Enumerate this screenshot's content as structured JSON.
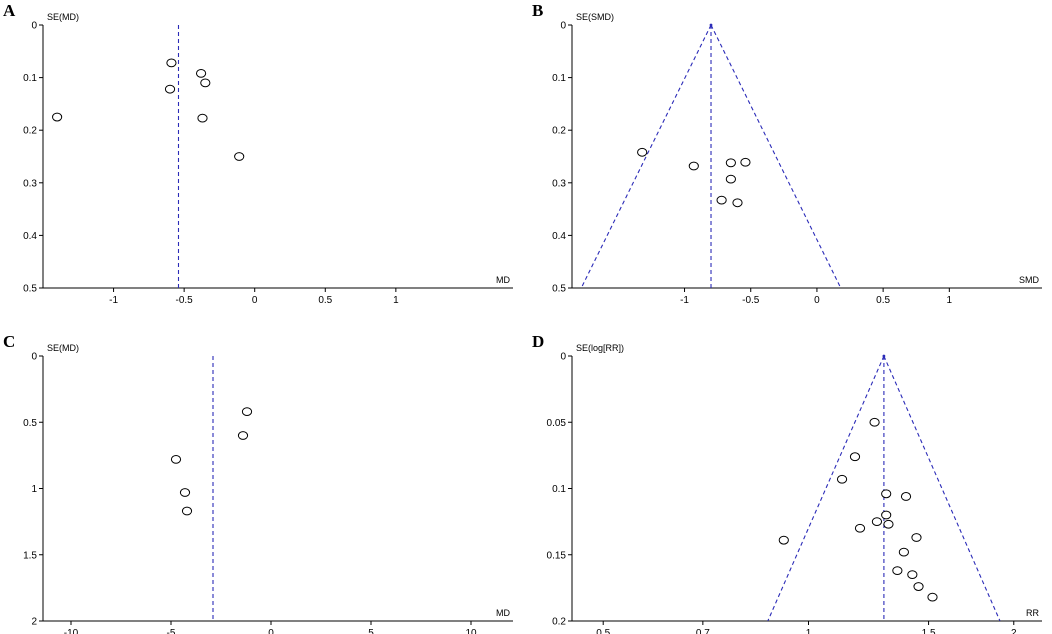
{
  "chart_data": [
    {
      "type": "scatter",
      "panel": "A",
      "ylabel": "SE(MD)",
      "xlabel": "MD",
      "x_ticks": [
        -1,
        -0.5,
        0,
        0.5,
        1
      ],
      "x_tick_labels": [
        "-1",
        "-0.5",
        "0",
        "0.5",
        "1"
      ],
      "y_ticks": [
        0,
        0.1,
        0.2,
        0.3,
        0.4,
        0.5
      ],
      "y_tick_labels": [
        "0",
        "0.1",
        "0.2",
        "0.3",
        "0.4",
        "0.5"
      ],
      "xlim": [
        -1.5,
        1.83
      ],
      "ylim": [
        0,
        0.5
      ],
      "y_reversed": true,
      "pooled_effect": -0.54,
      "funnel_limits": false,
      "points": [
        {
          "x": -1.4,
          "y": 0.175
        },
        {
          "x": -0.59,
          "y": 0.072
        },
        {
          "x": -0.6,
          "y": 0.122
        },
        {
          "x": -0.38,
          "y": 0.092
        },
        {
          "x": -0.35,
          "y": 0.11
        },
        {
          "x": -0.37,
          "y": 0.177
        },
        {
          "x": -0.11,
          "y": 0.25
        }
      ]
    },
    {
      "type": "scatter",
      "panel": "B",
      "ylabel": "SE(SMD)",
      "xlabel": "SMD",
      "x_ticks": [
        -1,
        -0.5,
        0,
        0.5,
        1
      ],
      "x_tick_labels": [
        "-1",
        "-0.5",
        "0",
        "0.5",
        "1"
      ],
      "y_ticks": [
        0,
        0.1,
        0.2,
        0.3,
        0.4,
        0.5
      ],
      "y_tick_labels": [
        "0",
        "0.1",
        "0.2",
        "0.3",
        "0.4",
        "0.5"
      ],
      "xlim": [
        -1.85,
        1.7
      ],
      "ylim": [
        0,
        0.5
      ],
      "y_reversed": true,
      "pooled_effect": -0.8,
      "funnel_limits": true,
      "points": [
        {
          "x": -1.32,
          "y": 0.242
        },
        {
          "x": -0.93,
          "y": 0.268
        },
        {
          "x": -0.65,
          "y": 0.262
        },
        {
          "x": -0.54,
          "y": 0.261
        },
        {
          "x": -0.65,
          "y": 0.293
        },
        {
          "x": -0.72,
          "y": 0.333
        },
        {
          "x": -0.6,
          "y": 0.338
        }
      ]
    },
    {
      "type": "scatter",
      "panel": "C",
      "ylabel": "SE(MD)",
      "xlabel": "MD",
      "x_ticks": [
        -10,
        -5,
        0,
        5,
        10
      ],
      "x_tick_labels": [
        "-10",
        "-5",
        "0",
        "5",
        "10"
      ],
      "y_ticks": [
        0,
        0.5,
        1,
        1.5,
        2
      ],
      "y_tick_labels": [
        "0",
        "0.5",
        "1",
        "1.5",
        "2"
      ],
      "xlim": [
        -11.4,
        12.1
      ],
      "ylim": [
        0,
        2
      ],
      "y_reversed": true,
      "pooled_effect": -2.9,
      "funnel_limits": false,
      "points": [
        {
          "x": -1.2,
          "y": 0.42
        },
        {
          "x": -1.4,
          "y": 0.6
        },
        {
          "x": -4.75,
          "y": 0.78
        },
        {
          "x": -4.3,
          "y": 1.03
        },
        {
          "x": -4.2,
          "y": 1.17
        }
      ]
    },
    {
      "type": "scatter",
      "panel": "D",
      "ylabel": "SE(log[RR])",
      "xlabel": "RR",
      "x_scale": "log",
      "x_ticks": [
        0.5,
        0.7,
        1,
        1.5,
        2
      ],
      "x_tick_labels": [
        "0.5",
        "0.7",
        "1",
        "1.5",
        "2"
      ],
      "y_ticks": [
        0,
        0.05,
        0.1,
        0.15,
        0.2
      ],
      "y_tick_labels": [
        "0",
        "0.05",
        "0.1",
        "0.15",
        "0.2"
      ],
      "xlim": [
        0.45,
        2.2
      ],
      "ylim": [
        0,
        0.2
      ],
      "y_reversed": true,
      "pooled_effect": 1.29,
      "funnel_limits": true,
      "points": [
        {
          "x": 1.25,
          "y": 0.05
        },
        {
          "x": 1.17,
          "y": 0.076
        },
        {
          "x": 1.12,
          "y": 0.093
        },
        {
          "x": 1.3,
          "y": 0.104
        },
        {
          "x": 1.39,
          "y": 0.106
        },
        {
          "x": 1.3,
          "y": 0.12
        },
        {
          "x": 1.26,
          "y": 0.125
        },
        {
          "x": 1.31,
          "y": 0.127
        },
        {
          "x": 1.19,
          "y": 0.13
        },
        {
          "x": 1.44,
          "y": 0.137
        },
        {
          "x": 0.92,
          "y": 0.139
        },
        {
          "x": 1.38,
          "y": 0.148
        },
        {
          "x": 1.35,
          "y": 0.162
        },
        {
          "x": 1.42,
          "y": 0.165
        },
        {
          "x": 1.45,
          "y": 0.174
        },
        {
          "x": 1.52,
          "y": 0.182
        }
      ]
    }
  ]
}
